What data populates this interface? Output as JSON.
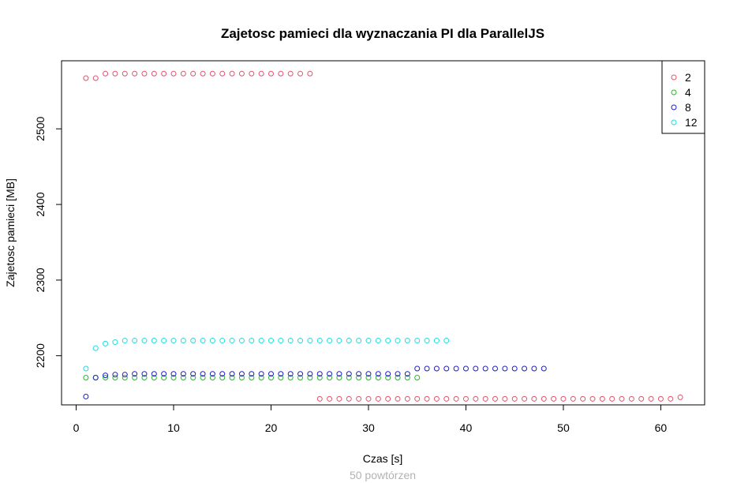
{
  "chart_data": {
    "type": "scatter",
    "title": "Zajetosc pamieci dla wyznaczania PI dla ParallelJS",
    "subtitle": "50 powtórzen",
    "xlabel": "Czas [s]",
    "ylabel": "Zajetosc pamieci [MB]",
    "xlim": [
      -1.5,
      64.5
    ],
    "ylim": [
      2135,
      2590
    ],
    "xticks": [
      0,
      10,
      20,
      30,
      40,
      50,
      60
    ],
    "yticks": [
      2200,
      2300,
      2400,
      2500
    ],
    "grid": false,
    "legend_position": "top-right",
    "series": [
      {
        "name": "2",
        "color": "#DF536B",
        "points": [
          [
            1,
            2567
          ],
          [
            2,
            2567
          ],
          [
            3,
            2573
          ],
          [
            4,
            2573
          ],
          [
            5,
            2573
          ],
          [
            6,
            2573
          ],
          [
            7,
            2573
          ],
          [
            8,
            2573
          ],
          [
            9,
            2573
          ],
          [
            10,
            2573
          ],
          [
            11,
            2573
          ],
          [
            12,
            2573
          ],
          [
            13,
            2573
          ],
          [
            14,
            2573
          ],
          [
            15,
            2573
          ],
          [
            16,
            2573
          ],
          [
            17,
            2573
          ],
          [
            18,
            2573
          ],
          [
            19,
            2573
          ],
          [
            20,
            2573
          ],
          [
            21,
            2573
          ],
          [
            22,
            2573
          ],
          [
            23,
            2573
          ],
          [
            24,
            2573
          ],
          [
            25,
            2143
          ],
          [
            26,
            2143
          ],
          [
            27,
            2143
          ],
          [
            28,
            2143
          ],
          [
            29,
            2143
          ],
          [
            30,
            2143
          ],
          [
            31,
            2143
          ],
          [
            32,
            2143
          ],
          [
            33,
            2143
          ],
          [
            34,
            2143
          ],
          [
            35,
            2143
          ],
          [
            36,
            2143
          ],
          [
            37,
            2143
          ],
          [
            38,
            2143
          ],
          [
            39,
            2143
          ],
          [
            40,
            2143
          ],
          [
            41,
            2143
          ],
          [
            42,
            2143
          ],
          [
            43,
            2143
          ],
          [
            44,
            2143
          ],
          [
            45,
            2143
          ],
          [
            46,
            2143
          ],
          [
            47,
            2143
          ],
          [
            48,
            2143
          ],
          [
            49,
            2143
          ],
          [
            50,
            2143
          ],
          [
            51,
            2143
          ],
          [
            52,
            2143
          ],
          [
            53,
            2143
          ],
          [
            54,
            2143
          ],
          [
            55,
            2143
          ],
          [
            56,
            2143
          ],
          [
            57,
            2143
          ],
          [
            58,
            2143
          ],
          [
            59,
            2143
          ],
          [
            60,
            2143
          ],
          [
            61,
            2143
          ],
          [
            62,
            2145
          ]
        ]
      },
      {
        "name": "4",
        "color": "#22BB22",
        "points": [
          [
            1,
            2171
          ],
          [
            2,
            2171
          ],
          [
            3,
            2171
          ],
          [
            4,
            2171
          ],
          [
            5,
            2171
          ],
          [
            6,
            2171
          ],
          [
            7,
            2171
          ],
          [
            8,
            2171
          ],
          [
            9,
            2171
          ],
          [
            10,
            2171
          ],
          [
            11,
            2171
          ],
          [
            12,
            2171
          ],
          [
            13,
            2171
          ],
          [
            14,
            2171
          ],
          [
            15,
            2171
          ],
          [
            16,
            2171
          ],
          [
            17,
            2171
          ],
          [
            18,
            2171
          ],
          [
            19,
            2171
          ],
          [
            20,
            2171
          ],
          [
            21,
            2171
          ],
          [
            22,
            2171
          ],
          [
            23,
            2171
          ],
          [
            24,
            2171
          ],
          [
            25,
            2171
          ],
          [
            26,
            2171
          ],
          [
            27,
            2171
          ],
          [
            28,
            2171
          ],
          [
            29,
            2171
          ],
          [
            30,
            2171
          ],
          [
            31,
            2171
          ],
          [
            32,
            2171
          ],
          [
            33,
            2171
          ],
          [
            34,
            2171
          ],
          [
            35,
            2171
          ]
        ]
      },
      {
        "name": "8",
        "color": "#1F1FBF",
        "points": [
          [
            1,
            2146
          ],
          [
            2,
            2171
          ],
          [
            3,
            2174
          ],
          [
            4,
            2175
          ],
          [
            5,
            2175
          ],
          [
            6,
            2176
          ],
          [
            7,
            2176
          ],
          [
            8,
            2176
          ],
          [
            9,
            2176
          ],
          [
            10,
            2176
          ],
          [
            11,
            2176
          ],
          [
            12,
            2176
          ],
          [
            13,
            2176
          ],
          [
            14,
            2176
          ],
          [
            15,
            2176
          ],
          [
            16,
            2176
          ],
          [
            17,
            2176
          ],
          [
            18,
            2176
          ],
          [
            19,
            2176
          ],
          [
            20,
            2176
          ],
          [
            21,
            2176
          ],
          [
            22,
            2176
          ],
          [
            23,
            2176
          ],
          [
            24,
            2176
          ],
          [
            25,
            2176
          ],
          [
            26,
            2176
          ],
          [
            27,
            2176
          ],
          [
            28,
            2176
          ],
          [
            29,
            2176
          ],
          [
            30,
            2176
          ],
          [
            31,
            2176
          ],
          [
            32,
            2176
          ],
          [
            33,
            2176
          ],
          [
            34,
            2176
          ],
          [
            35,
            2183
          ],
          [
            36,
            2183
          ],
          [
            37,
            2183
          ],
          [
            38,
            2183
          ],
          [
            39,
            2183
          ],
          [
            40,
            2183
          ],
          [
            41,
            2183
          ],
          [
            42,
            2183
          ],
          [
            43,
            2183
          ],
          [
            44,
            2183
          ],
          [
            45,
            2183
          ],
          [
            46,
            2183
          ],
          [
            47,
            2183
          ],
          [
            48,
            2183
          ]
        ]
      },
      {
        "name": "12",
        "color": "#22DDDD",
        "points": [
          [
            1,
            2183
          ],
          [
            2,
            2210
          ],
          [
            3,
            2216
          ],
          [
            4,
            2218
          ],
          [
            5,
            2220
          ],
          [
            6,
            2220
          ],
          [
            7,
            2220
          ],
          [
            8,
            2220
          ],
          [
            9,
            2220
          ],
          [
            10,
            2220
          ],
          [
            11,
            2220
          ],
          [
            12,
            2220
          ],
          [
            13,
            2220
          ],
          [
            14,
            2220
          ],
          [
            15,
            2220
          ],
          [
            16,
            2220
          ],
          [
            17,
            2220
          ],
          [
            18,
            2220
          ],
          [
            19,
            2220
          ],
          [
            20,
            2220
          ],
          [
            21,
            2220
          ],
          [
            22,
            2220
          ],
          [
            23,
            2220
          ],
          [
            24,
            2220
          ],
          [
            25,
            2220
          ],
          [
            26,
            2220
          ],
          [
            27,
            2220
          ],
          [
            28,
            2220
          ],
          [
            29,
            2220
          ],
          [
            30,
            2220
          ],
          [
            31,
            2220
          ],
          [
            32,
            2220
          ],
          [
            33,
            2220
          ],
          [
            34,
            2220
          ],
          [
            35,
            2220
          ],
          [
            36,
            2220
          ],
          [
            37,
            2220
          ],
          [
            38,
            2220
          ]
        ]
      }
    ]
  }
}
